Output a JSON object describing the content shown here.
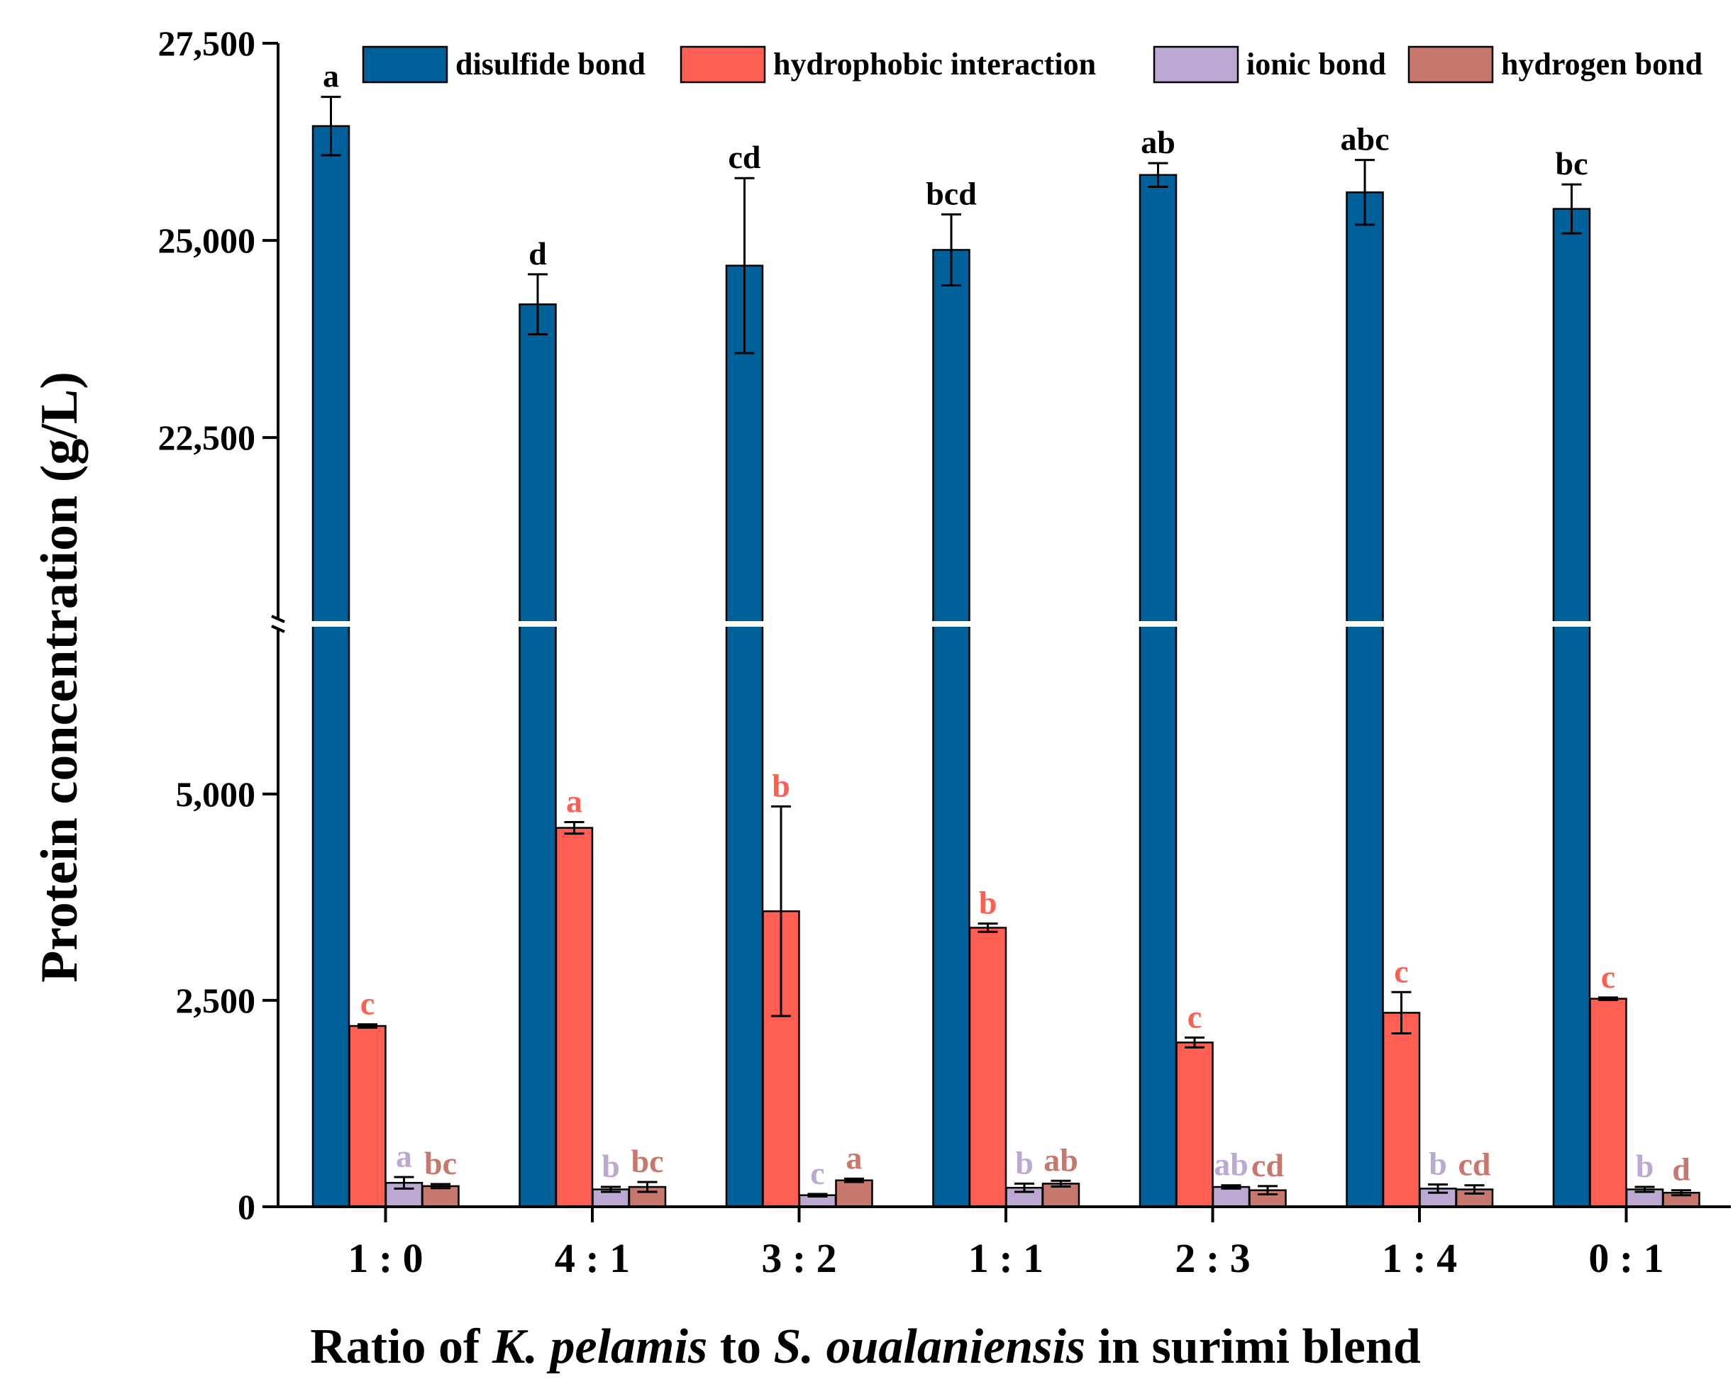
{
  "chart_data": {
    "type": "bar",
    "title": "",
    "ylabel": "Protein concentration (g/L)",
    "xlabel": {
      "parts": [
        {
          "text": "Ratio of ",
          "italic": false
        },
        {
          "text": "K. pelamis",
          "italic": true
        },
        {
          "text": " to ",
          "italic": false
        },
        {
          "text": "S. oualaniensis",
          "italic": true
        },
        {
          "text": " in surimi blend",
          "italic": false
        }
      ]
    },
    "categories": [
      "1 : 0",
      "4 : 1",
      "3 : 2",
      "1 : 1",
      "2 : 3",
      "1 : 4",
      "0 : 1"
    ],
    "yaxis": {
      "broken": true,
      "lower_range": [
        0,
        7000
      ],
      "upper_range": [
        20200,
        27500
      ],
      "lower_ticks": [
        0,
        2500,
        5000
      ],
      "upper_ticks": [
        22500,
        25000,
        27500
      ],
      "tick_labels": {
        "0": "0",
        "2500": "2,500",
        "5000": "5,000",
        "22500": "22,500",
        "25000": "25,000",
        "27500": "27,500"
      }
    },
    "legend_position": "top",
    "series": [
      {
        "name": "disulfide bond",
        "color": "#00619A",
        "sig_color": "#000000",
        "values": [
          26450,
          24190,
          24680,
          24880,
          25830,
          25610,
          25400
        ],
        "errors": [
          370,
          380,
          1110,
          450,
          150,
          410,
          310
        ],
        "letters": [
          "a",
          "d",
          "cd",
          "bcd",
          "ab",
          "abc",
          "bc"
        ]
      },
      {
        "name": "hydrophobic interaction",
        "color": "#FF5F52",
        "sig_color": "#FF5F52",
        "values": [
          2190,
          4590,
          3580,
          3380,
          1990,
          2350,
          2520
        ],
        "errors": [
          20,
          70,
          1270,
          50,
          60,
          250,
          15
        ],
        "letters": [
          "c",
          "a",
          "b",
          "b",
          "c",
          "c",
          "c"
        ]
      },
      {
        "name": "ionic bond",
        "color": "#BCA8D3",
        "sig_color": "#BCA8D3",
        "values": [
          290,
          210,
          140,
          230,
          240,
          220,
          210
        ],
        "errors": [
          70,
          30,
          15,
          50,
          20,
          50,
          30
        ],
        "letters": [
          "a",
          "b",
          "c",
          "b",
          "ab",
          "b",
          "b"
        ]
      },
      {
        "name": "hydrogen bond",
        "color": "#C8776C",
        "sig_color": "#C8776C",
        "values": [
          250,
          240,
          320,
          280,
          200,
          210,
          170
        ],
        "errors": [
          25,
          60,
          20,
          35,
          50,
          50,
          30
        ],
        "letters": [
          "bc",
          "bc",
          "a",
          "ab",
          "cd",
          "cd",
          "d"
        ]
      }
    ]
  }
}
